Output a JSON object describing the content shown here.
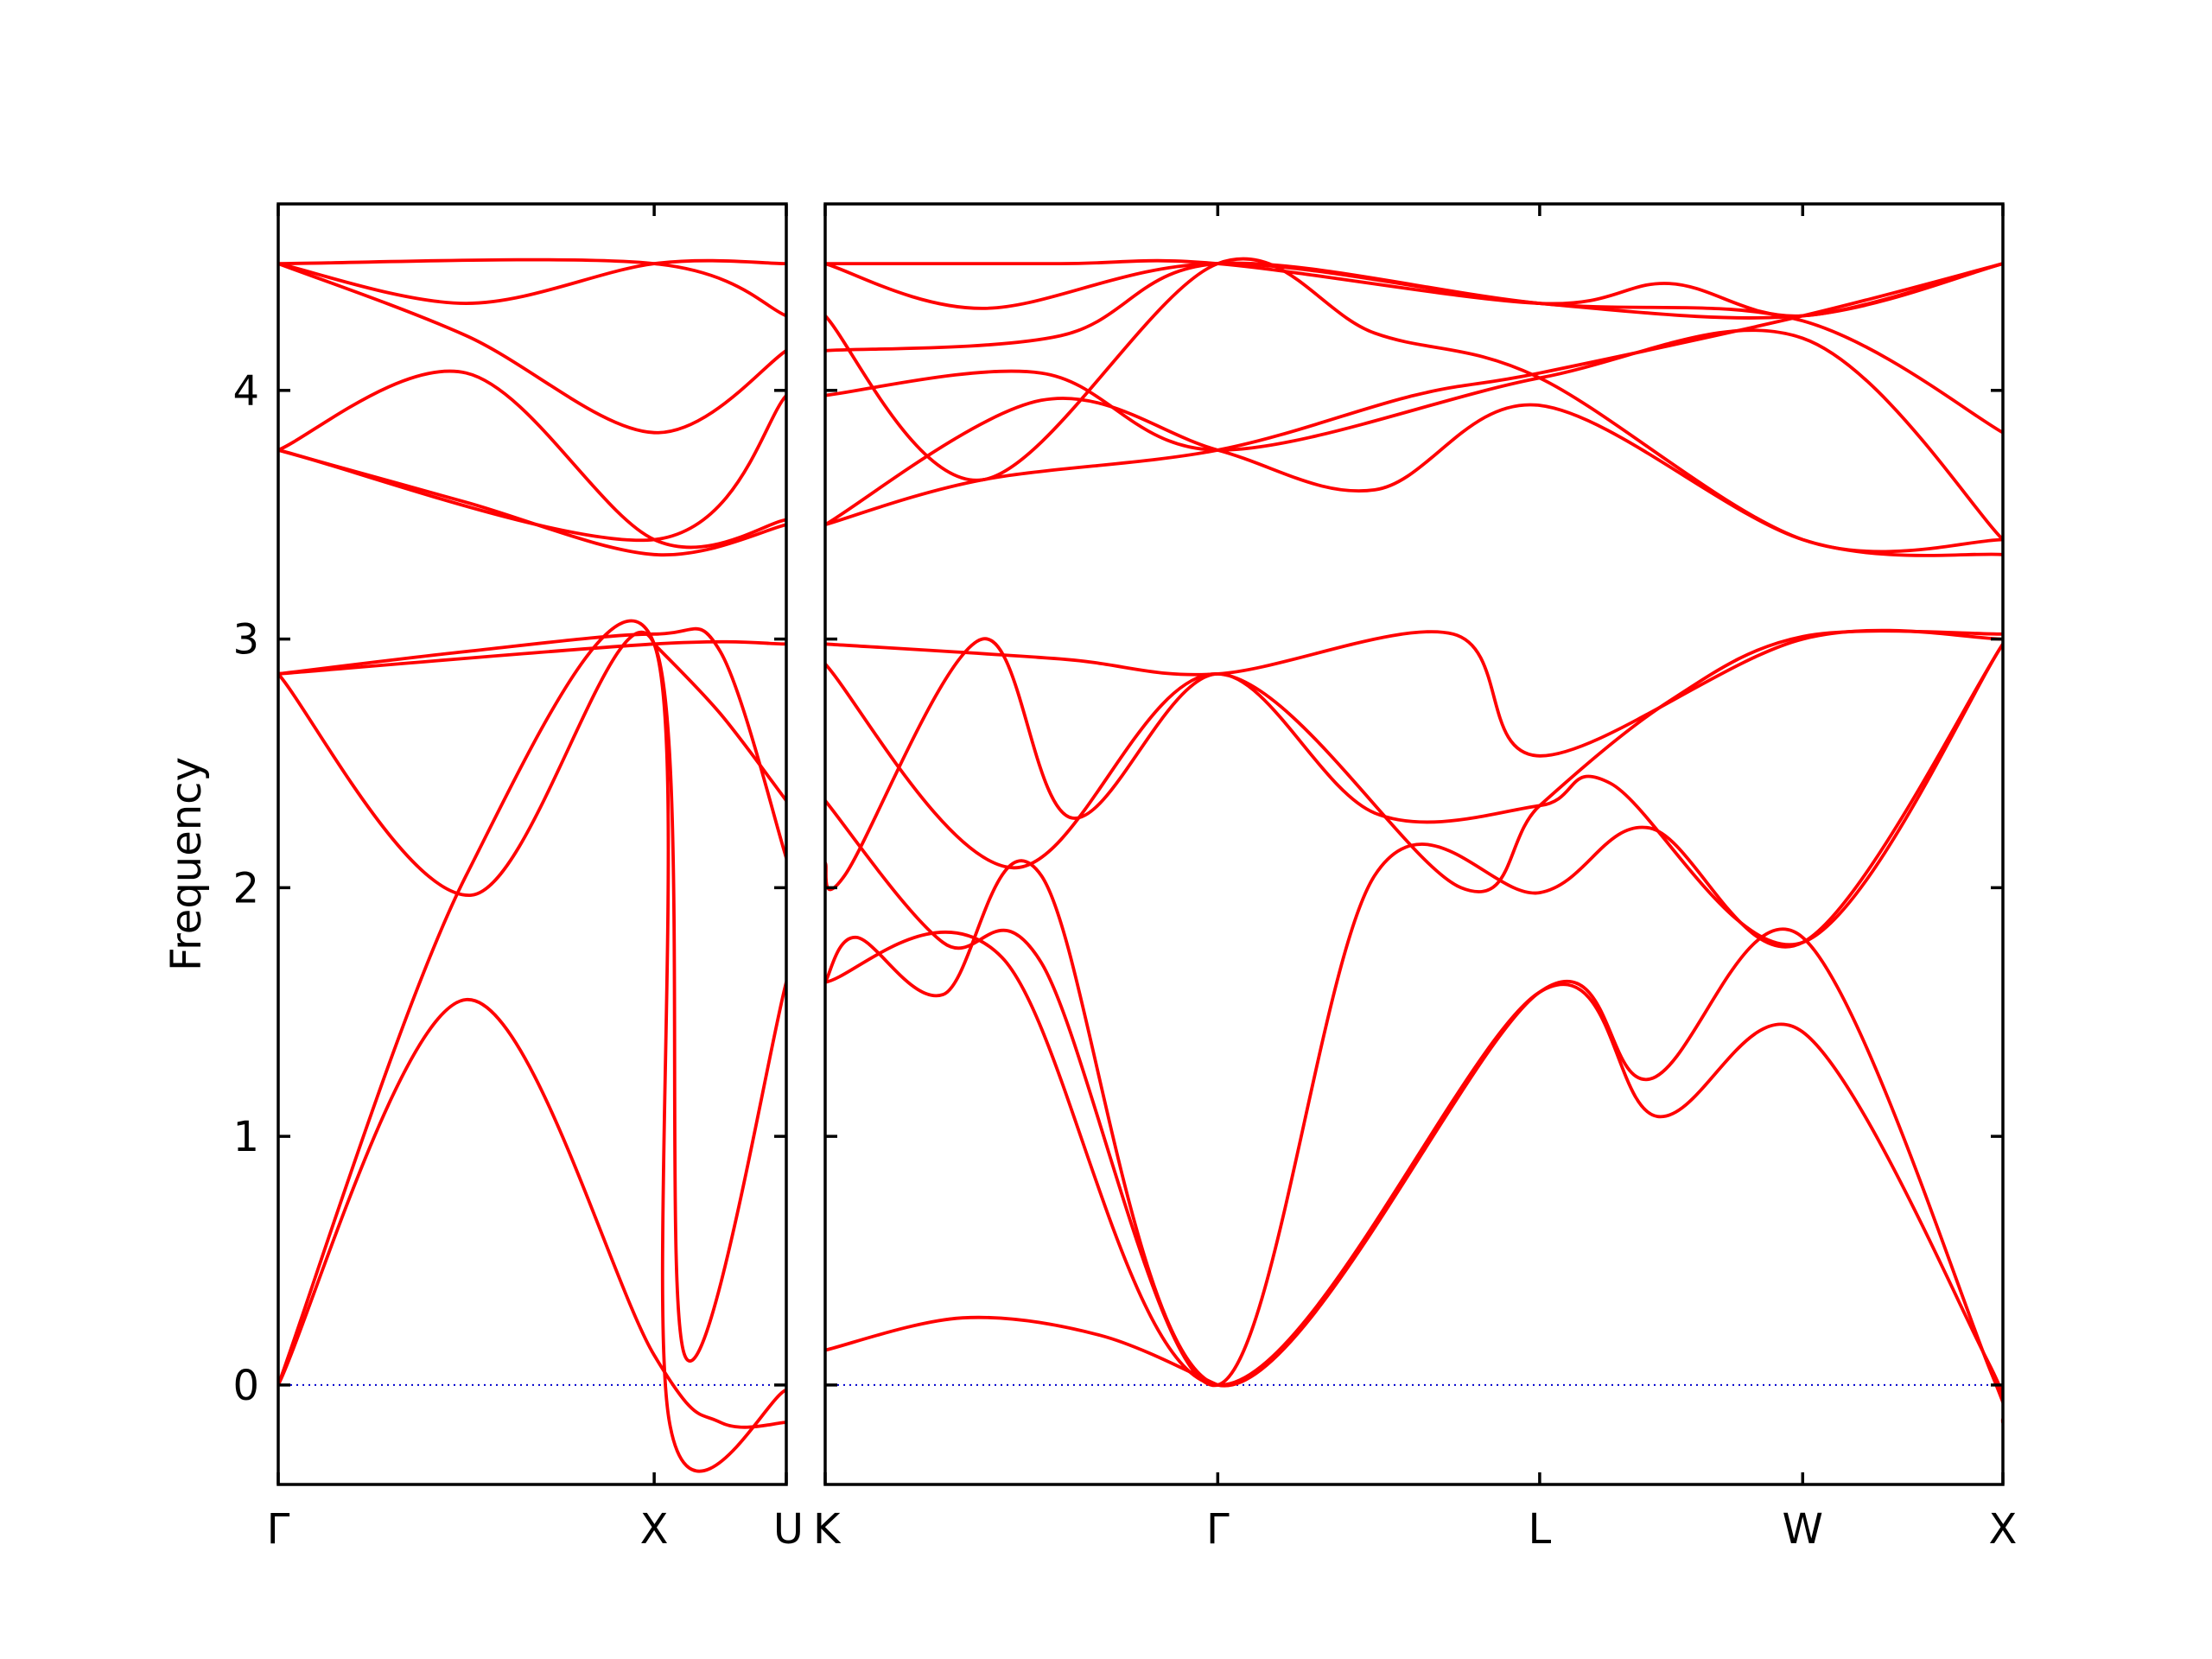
{
  "chart_data": {
    "type": "line",
    "title": "",
    "xlabel": "",
    "ylabel": "Frequency",
    "ylim": [
      -0.4,
      4.75
    ],
    "yticks": [
      0,
      1,
      2,
      3,
      4
    ],
    "grid": false,
    "band_color": "#ff0000",
    "zero_line_color": "#0000cd",
    "panels": [
      {
        "x_range": [
          0,
          1.0
        ],
        "xticks": [
          {
            "x": 0.0,
            "label": "Γ"
          },
          {
            "x": 0.74,
            "label": "X"
          },
          {
            "x": 1.0,
            "label": "U"
          }
        ],
        "bands": [
          {
            "x": [
              0,
              0.37,
              0.74,
              0.87,
              1.0
            ],
            "y": [
              0.0,
              1.55,
              0.12,
              -0.15,
              -0.15
            ]
          },
          {
            "x": [
              0,
              0.37,
              0.74,
              0.77,
              1.0
            ],
            "y": [
              0.0,
              2.05,
              2.98,
              -0.15,
              -0.02
            ]
          },
          {
            "x": [
              0,
              0.38,
              0.74,
              0.8,
              1.0
            ],
            "y": [
              2.86,
              1.97,
              2.98,
              0.12,
              1.62
            ]
          },
          {
            "x": [
              0,
              0.37,
              0.74,
              0.87,
              1.0
            ],
            "y": [
              2.86,
              2.95,
              3.02,
              2.95,
              2.12
            ]
          },
          {
            "x": [
              0,
              0.74,
              1.0
            ],
            "y": [
              2.86,
              2.98,
              2.98
            ]
          },
          {
            "x": [
              0,
              0.37,
              0.74,
              1.0
            ],
            "y": [
              3.76,
              3.55,
              3.34,
              3.46
            ]
          },
          {
            "x": [
              0,
              0.37,
              0.74,
              1.0
            ],
            "y": [
              3.76,
              4.07,
              3.4,
              3.48
            ]
          },
          {
            "x": [
              0,
              0.74,
              1.0
            ],
            "y": [
              3.76,
              3.4,
              3.98
            ]
          },
          {
            "x": [
              0,
              0.37,
              0.74,
              1.0
            ],
            "y": [
              4.51,
              4.22,
              3.83,
              4.16
            ]
          },
          {
            "x": [
              0,
              0.37,
              0.74,
              1.0
            ],
            "y": [
              4.51,
              4.35,
              4.51,
              4.51
            ]
          },
          {
            "x": [
              0,
              0.74,
              1.0
            ],
            "y": [
              4.51,
              4.51,
              4.3
            ]
          }
        ],
        "extra_bands": [
          {
            "x": [
              0.74,
              0.87,
              1.0
            ],
            "y": [
              2.98,
              2.7,
              2.35
            ]
          }
        ]
      },
      {
        "x_range": [
          0,
          3.0
        ],
        "xticks": [
          {
            "x": 0.0,
            "label": "K"
          },
          {
            "x": 1.0,
            "label": "Γ"
          },
          {
            "x": 1.82,
            "label": "L"
          },
          {
            "x": 2.49,
            "label": "W"
          },
          {
            "x": 3.0,
            "label": "X"
          }
        ],
        "bands": [
          {
            "x": [
              0,
              0.35,
              0.7,
              1.0
            ],
            "y": [
              0.14,
              0.27,
              0.2,
              0.0
            ]
          },
          {
            "x": [
              0,
              0.45,
              1.0,
              1.82,
              2.12,
              2.49,
              2.96,
              3.0
            ],
            "y": [
              1.62,
              1.72,
              0.0,
              1.58,
              1.08,
              1.42,
              0.1,
              -0.15
            ]
          },
          {
            "x": [
              0,
              0.08,
              0.3,
              0.55,
              1.0,
              1.82,
              2.1,
              2.49,
              2.97,
              3.0
            ],
            "y": [
              1.62,
              1.8,
              1.57,
              2.05,
              0.0,
              1.58,
              1.23,
              1.8,
              0.05,
              -0.15
            ]
          },
          {
            "x": [
              0,
              0.3,
              0.55,
              1.0,
              1.4,
              1.82,
              2.1,
              2.49,
              3.0
            ],
            "y": [
              2.35,
              1.78,
              1.7,
              0.0,
              2.05,
              1.98,
              2.24,
              1.78,
              2.98
            ]
          },
          {
            "x": [
              0,
              0.05,
              0.4,
              0.63,
              1.0,
              1.4,
              1.82,
              2.0,
              2.49,
              3.0
            ],
            "y": [
              2.1,
              2.05,
              3.0,
              2.28,
              2.86,
              2.3,
              2.33,
              2.42,
              1.78,
              2.98
            ]
          },
          {
            "x": [
              0,
              0.48,
              1.0,
              1.62,
              1.82,
              2.15,
              2.49,
              3.0
            ],
            "y": [
              2.9,
              2.08,
              2.86,
              2.0,
              2.33,
              2.75,
              3.01,
              3.02
            ]
          },
          {
            "x": [
              0,
              0.6,
              1.0,
              1.6,
              1.82,
              2.49,
              3.0
            ],
            "y": [
              2.98,
              2.92,
              2.86,
              3.02,
              2.53,
              3.0,
              3.0
            ]
          },
          {
            "x": [
              0,
              0.4,
              1.0,
              1.5,
              1.82,
              2.49,
              3.0
            ],
            "y": [
              3.46,
              3.64,
              3.76,
              3.98,
              4.07,
              4.3,
              4.51
            ]
          },
          {
            "x": [
              0,
              0.55,
              1.0,
              1.4,
              1.82,
              2.49,
              3.0
            ],
            "y": [
              3.46,
              3.96,
              3.76,
              3.6,
              3.94,
              3.4,
              3.34
            ]
          },
          {
            "x": [
              0,
              0.55,
              1.0,
              1.82,
              2.49,
              3.0
            ],
            "y": [
              3.98,
              4.07,
              3.76,
              4.05,
              4.21,
              3.4
            ]
          },
          {
            "x": [
              0,
              0.4,
              1.0,
              1.4,
              1.82,
              2.49,
              3.0
            ],
            "y": [
              4.3,
              3.64,
              4.51,
              4.23,
              4.05,
              3.4,
              3.4
            ]
          },
          {
            "x": [
              0,
              0.6,
              1.0,
              1.82,
              2.49,
              3.0
            ],
            "y": [
              4.16,
              4.22,
              4.51,
              4.35,
              4.28,
              3.83
            ]
          },
          {
            "x": [
              0,
              0.6,
              1.0,
              1.82,
              2.15,
              2.49,
              3.0
            ],
            "y": [
              4.51,
              4.51,
              4.51,
              4.35,
              4.43,
              4.3,
              4.51
            ]
          },
          {
            "x": [
              0,
              0.4,
              1.0,
              1.82,
              2.49,
              3.0
            ],
            "y": [
              4.51,
              4.33,
              4.51,
              4.35,
              4.3,
              4.51
            ]
          }
        ]
      }
    ]
  }
}
